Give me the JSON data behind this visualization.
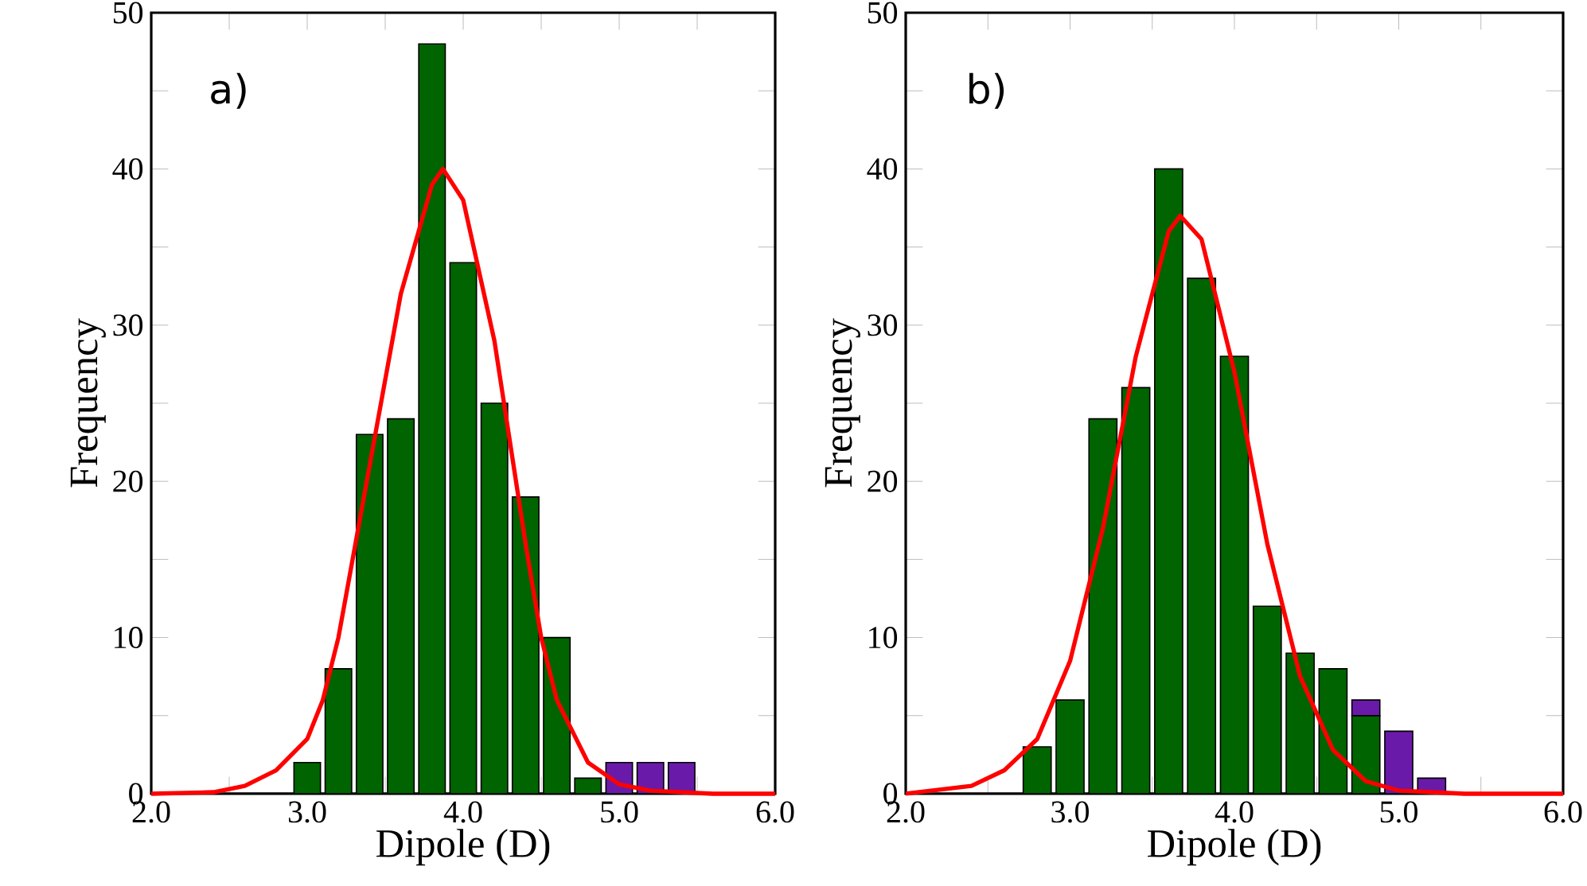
{
  "chart_data": [
    {
      "type": "bar",
      "stacked": true,
      "xlabel": "Dipole (D)",
      "ylabel": "Frequency",
      "annotations": [
        "a)"
      ],
      "x": [
        3.0,
        3.2,
        3.4,
        3.6,
        3.8,
        4.0,
        4.2,
        4.4,
        4.6,
        4.8,
        5.0,
        5.2,
        5.4
      ],
      "series": [
        {
          "color": "#006400",
          "values": [
            2,
            8,
            23,
            24,
            48,
            34,
            25,
            19,
            10,
            1,
            null,
            null,
            null
          ]
        },
        {
          "color": "#6a1aa8",
          "values": [
            null,
            null,
            null,
            null,
            null,
            null,
            null,
            null,
            null,
            null,
            2,
            2,
            2
          ]
        },
        {
          "type": "line",
          "color": "#ff0000",
          "x": [
            2.0,
            2.4,
            2.6,
            2.8,
            3.0,
            3.1,
            3.2,
            3.4,
            3.6,
            3.8,
            3.87,
            4.0,
            4.2,
            4.4,
            4.5,
            4.6,
            4.8,
            5.0,
            5.2,
            5.6,
            6.0
          ],
          "values": [
            0,
            0.1,
            0.5,
            1.5,
            3.5,
            6,
            10,
            21,
            32,
            39,
            40,
            38,
            29,
            16,
            10,
            6,
            2,
            0.6,
            0.2,
            0,
            0
          ]
        }
      ],
      "xlim": [
        2.0,
        6.0
      ],
      "ylim": [
        0,
        50
      ],
      "xticks": [
        {
          "value": 2.0,
          "label": "2.0"
        },
        {
          "value": 2.5,
          "label": null
        },
        {
          "value": 3.0,
          "label": "3.0"
        },
        {
          "value": 3.5,
          "label": null
        },
        {
          "value": 4.0,
          "label": "4.0"
        },
        {
          "value": 4.5,
          "label": null
        },
        {
          "value": 5.0,
          "label": "5.0"
        },
        {
          "value": 5.5,
          "label": null
        },
        {
          "value": 6.0,
          "label": "6.0"
        }
      ],
      "yticks": [
        0,
        {
          "value": 5,
          "label": null
        },
        10,
        {
          "value": 15,
          "label": null
        },
        20,
        {
          "value": 25,
          "label": null
        },
        30,
        {
          "value": 35,
          "label": null
        },
        40,
        {
          "value": 45,
          "label": null
        },
        50
      ]
    },
    {
      "type": "bar",
      "stacked": true,
      "xlabel": "Dipole (D)",
      "ylabel": "Frequency",
      "annotations": [
        "b)"
      ],
      "x": [
        2.8,
        3.0,
        3.2,
        3.4,
        3.6,
        3.8,
        4.0,
        4.2,
        4.4,
        4.6,
        4.8,
        5.0,
        5.2
      ],
      "series": [
        {
          "color": "#006400",
          "values": [
            3,
            6,
            24,
            26,
            40,
            33,
            28,
            12,
            9,
            8,
            5,
            null,
            null
          ]
        },
        {
          "color": "#6a1aa8",
          "values": [
            null,
            null,
            null,
            null,
            null,
            null,
            null,
            null,
            null,
            null,
            1,
            4,
            1
          ]
        },
        {
          "type": "line",
          "color": "#ff0000",
          "x": [
            2.0,
            2.4,
            2.6,
            2.8,
            3.0,
            3.2,
            3.4,
            3.6,
            3.67,
            3.8,
            4.0,
            4.2,
            4.4,
            4.6,
            4.8,
            5.0,
            5.4,
            6.0
          ],
          "values": [
            0,
            0.5,
            1.5,
            3.5,
            8.5,
            17,
            28,
            36,
            37,
            35.5,
            27,
            16,
            7.5,
            2.8,
            0.8,
            0.2,
            0,
            0
          ]
        }
      ],
      "xlim": [
        2.0,
        6.0
      ],
      "ylim": [
        0,
        50
      ],
      "xticks": [
        {
          "value": 2.0,
          "label": "2.0"
        },
        {
          "value": 2.5,
          "label": null
        },
        {
          "value": 3.0,
          "label": "3.0"
        },
        {
          "value": 3.5,
          "label": null
        },
        {
          "value": 4.0,
          "label": "4.0"
        },
        {
          "value": 4.5,
          "label": null
        },
        {
          "value": 5.0,
          "label": "5.0"
        },
        {
          "value": 5.5,
          "label": null
        },
        {
          "value": 6.0,
          "label": "6.0"
        }
      ],
      "yticks": [
        0,
        {
          "value": 5,
          "label": null
        },
        10,
        {
          "value": 15,
          "label": null
        },
        20,
        {
          "value": 25,
          "label": null
        },
        30,
        {
          "value": 35,
          "label": null
        },
        40,
        {
          "value": 45,
          "label": null
        },
        50
      ]
    }
  ]
}
